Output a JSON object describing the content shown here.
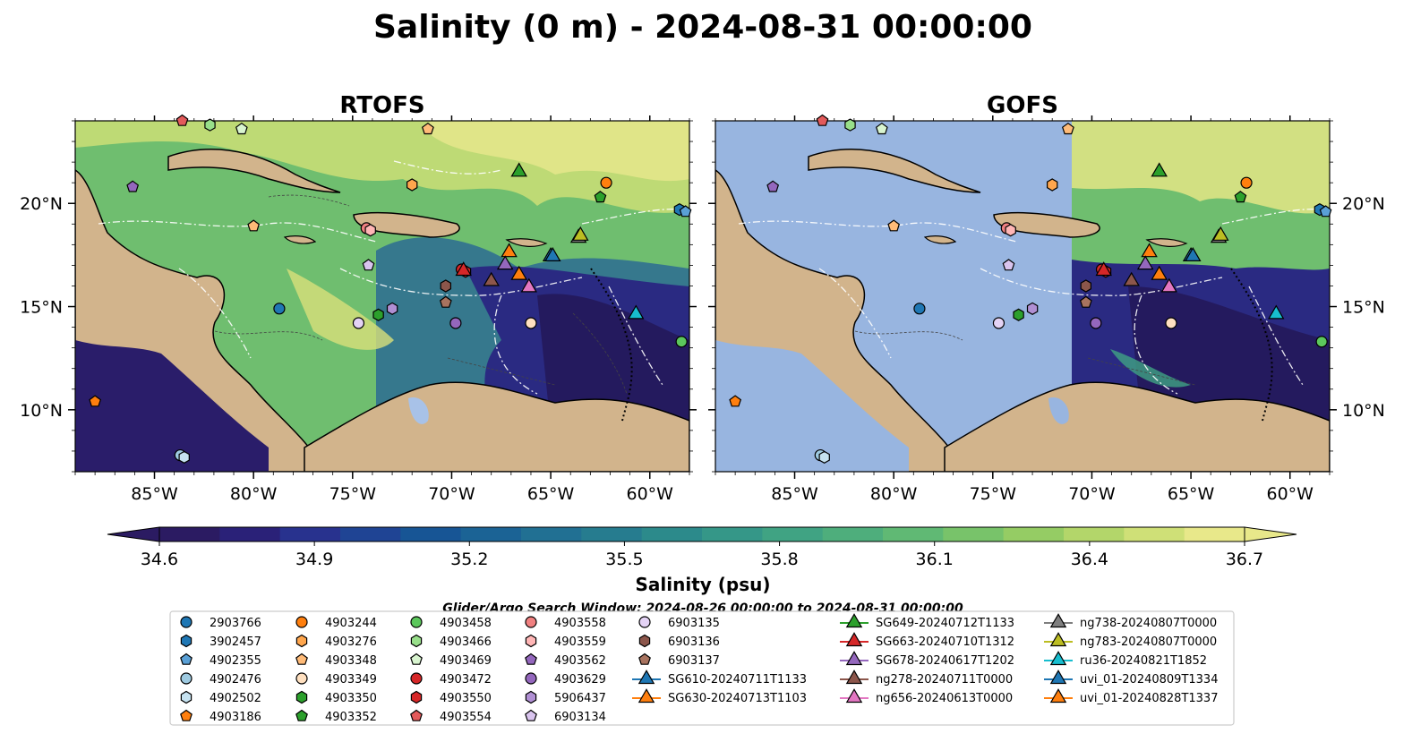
{
  "figure": {
    "title": "Salinity (0 m) - 2024-08-31 00:00:00",
    "search_window": "Glider/Argo Search Window: 2024-08-26 00:00:00 to 2024-08-31 00:00:00"
  },
  "panels": [
    {
      "id": "rtofs",
      "title": "RTOFS"
    },
    {
      "id": "gofs",
      "title": "GOFS"
    }
  ],
  "map_axes": {
    "lon_range": [
      -89.0,
      -58.0
    ],
    "lat_range": [
      7.0,
      24.0
    ],
    "lon_ticks": [
      -85,
      -80,
      -75,
      -70,
      -65,
      -60
    ],
    "lon_tick_labels": [
      "85°W",
      "80°W",
      "75°W",
      "70°W",
      "65°W",
      "60°W"
    ],
    "lat_ticks": [
      10,
      15,
      20
    ],
    "lat_tick_labels": [
      "10°N",
      "15°N",
      "20°N"
    ]
  },
  "colorbar": {
    "label": "Salinity (psu)",
    "vmin": 34.6,
    "vmax": 36.7,
    "tick_values": [
      34.6,
      34.9,
      35.2,
      35.5,
      35.8,
      36.1,
      36.4,
      36.7
    ],
    "tick_labels": [
      "34.6",
      "34.9",
      "35.2",
      "35.5",
      "35.8",
      "36.1",
      "36.4",
      "36.7"
    ],
    "colors": [
      "#2b1b62",
      "#2a2178",
      "#28328e",
      "#1f4494",
      "#175595",
      "#1b6395",
      "#217093",
      "#267c8f",
      "#2c8a8b",
      "#359788",
      "#40a383",
      "#4eae7c",
      "#60b974",
      "#78c36a",
      "#95cc64",
      "#b3d66a",
      "#cfe077",
      "#e8e88a"
    ]
  },
  "colors": {
    "land": "#d2b48c",
    "gofs_mask": "#98b5e0",
    "lake": "#a8c2e8"
  },
  "argo_floats": [
    {
      "id": "2903766",
      "lon": -78.7,
      "lat": 14.9,
      "color": "#1f77b4",
      "marker": "circle"
    },
    {
      "id": "3902457",
      "lon": -58.5,
      "lat": 19.7,
      "color": "#1f77b4",
      "marker": "hexagon"
    },
    {
      "id": "4902355",
      "lon": -58.2,
      "lat": 19.6,
      "color": "#5aa0d6",
      "marker": "pentagon"
    },
    {
      "id": "4902476",
      "lon": -83.7,
      "lat": 7.8,
      "color": "#9ecae1",
      "marker": "circle"
    },
    {
      "id": "4902502",
      "lon": -83.5,
      "lat": 7.7,
      "color": "#c6e2f0",
      "marker": "hexagon"
    },
    {
      "id": "4903186",
      "lon": -88.0,
      "lat": 10.4,
      "color": "#ff7f0e",
      "marker": "pentagon"
    },
    {
      "id": "4903244",
      "lon": -62.2,
      "lat": 21.0,
      "color": "#ff7f0e",
      "marker": "circle"
    },
    {
      "id": "4903276",
      "lon": -72.0,
      "lat": 20.9,
      "color": "#ffa64d",
      "marker": "hexagon"
    },
    {
      "id": "4903348",
      "lon": -80.0,
      "lat": 18.9,
      "color": "#ffbb78",
      "marker": "pentagon"
    },
    {
      "id": "4903349",
      "lon": -66.0,
      "lat": 14.2,
      "color": "#ffe0c0",
      "marker": "circle"
    },
    {
      "id": "4903350",
      "lon": -73.7,
      "lat": 14.6,
      "color": "#2ca02c",
      "marker": "hexagon"
    },
    {
      "id": "4903352",
      "lon": -62.5,
      "lat": 20.3,
      "color": "#2ca02c",
      "marker": "pentagon"
    },
    {
      "id": "4903458",
      "lon": -58.4,
      "lat": 13.3,
      "color": "#5cc75c",
      "marker": "circle"
    },
    {
      "id": "4903466",
      "lon": -82.2,
      "lat": 23.8,
      "color": "#98df8a",
      "marker": "hexagon"
    },
    {
      "id": "4903469",
      "lon": -80.6,
      "lat": 23.6,
      "color": "#d9f5d0",
      "marker": "pentagon"
    },
    {
      "id": "4903472",
      "lon": -69.5,
      "lat": 16.8,
      "color": "#d62728",
      "marker": "circle"
    },
    {
      "id": "4903550",
      "lon": -69.3,
      "lat": 16.7,
      "color": "#d62728",
      "marker": "hexagon"
    },
    {
      "id": "4903554",
      "lon": -83.6,
      "lat": 24.0,
      "color": "#e35a5b",
      "marker": "pentagon"
    },
    {
      "id": "4903558",
      "lon": -74.3,
      "lat": 18.8,
      "color": "#f08080",
      "marker": "circle"
    },
    {
      "id": "4903559",
      "lon": -74.1,
      "lat": 18.7,
      "color": "#ffb6b6",
      "marker": "hexagon"
    },
    {
      "id": "4903562",
      "lon": -86.1,
      "lat": 20.8,
      "color": "#9467bd",
      "marker": "pentagon"
    },
    {
      "id": "4903629",
      "lon": -69.8,
      "lat": 14.2,
      "color": "#9467bd",
      "marker": "circle"
    },
    {
      "id": "5906437",
      "lon": -73.0,
      "lat": 14.9,
      "color": "#b08fd3",
      "marker": "hexagon"
    },
    {
      "id": "6903134",
      "lon": -74.2,
      "lat": 17.0,
      "color": "#d9c4ee",
      "marker": "pentagon"
    },
    {
      "id": "6903135",
      "lon": -74.7,
      "lat": 14.2,
      "color": "#e4d3f5",
      "marker": "circle"
    },
    {
      "id": "6903136",
      "lon": -70.3,
      "lat": 16.0,
      "color": "#8c564b",
      "marker": "hexagon"
    },
    {
      "id": "6903137",
      "lon": -70.3,
      "lat": 15.2,
      "color": "#a8735f",
      "marker": "pentagon"
    }
  ],
  "argo_markers_extra": [
    {
      "ref": "4903244",
      "lon": -71.2,
      "lat": 23.6,
      "color": "#ffbb78",
      "marker": "pentagon"
    }
  ],
  "gliders": [
    {
      "id": "SG610-20240711T1133",
      "lon": -65.0,
      "lat": 17.5,
      "color": "#1f77b4"
    },
    {
      "id": "SG630-20240713T1103",
      "lon": -67.1,
      "lat": 17.7,
      "color": "#ff7f0e"
    },
    {
      "id": "SG649-20240712T1133",
      "lon": -66.6,
      "lat": 21.6,
      "color": "#2ca02c"
    },
    {
      "id": "SG663-20240710T1312",
      "lon": -69.4,
      "lat": 16.8,
      "color": "#d62728"
    },
    {
      "id": "SG678-20240617T1202",
      "lon": -67.3,
      "lat": 17.1,
      "color": "#9467bd"
    },
    {
      "id": "ng278-20240711T0000",
      "lon": -68.0,
      "lat": 16.3,
      "color": "#8c564b"
    },
    {
      "id": "ng656-20240613T0000",
      "lon": -66.1,
      "lat": 16.0,
      "color": "#e377c2"
    },
    {
      "id": "ng738-20240807T0000",
      "lon": -63.6,
      "lat": 18.4,
      "color": "#7f7f7f"
    },
    {
      "id": "ng783-20240807T0000",
      "lon": -63.5,
      "lat": 18.5,
      "color": "#bcbd22"
    },
    {
      "id": "ru36-20240821T1852",
      "lon": -60.7,
      "lat": 14.7,
      "color": "#17becf"
    },
    {
      "id": "uvi_01-20240809T1334",
      "lon": -64.9,
      "lat": 17.5,
      "color": "#1f77b4"
    },
    {
      "id": "uvi_01-20240828T1337",
      "lon": -66.6,
      "lat": 16.6,
      "color": "#ff7f0e"
    }
  ],
  "legend_columns": [
    [
      "2903766",
      "3902457",
      "4902355",
      "4902476",
      "4902502",
      "4903186"
    ],
    [
      "4903244",
      "4903276",
      "4903348",
      "4903349",
      "4903350",
      "4903352"
    ],
    [
      "4903458",
      "4903466",
      "4903469",
      "4903472",
      "4903550",
      "4903554"
    ],
    [
      "4903558",
      "4903559",
      "4903562",
      "4903629",
      "5906437",
      "6903134"
    ],
    [
      "6903135",
      "6903136",
      "6903137",
      "SG610-20240711T1133",
      "SG630-20240713T1103"
    ],
    [
      "SG649-20240712T1133",
      "SG663-20240710T1312",
      "SG678-20240617T1202",
      "ng278-20240711T0000",
      "ng656-20240613T0000"
    ],
    [
      "ng738-20240807T0000",
      "ng783-20240807T0000",
      "ru36-20240821T1852",
      "uvi_01-20240809T1334",
      "uvi_01-20240828T1337"
    ]
  ]
}
